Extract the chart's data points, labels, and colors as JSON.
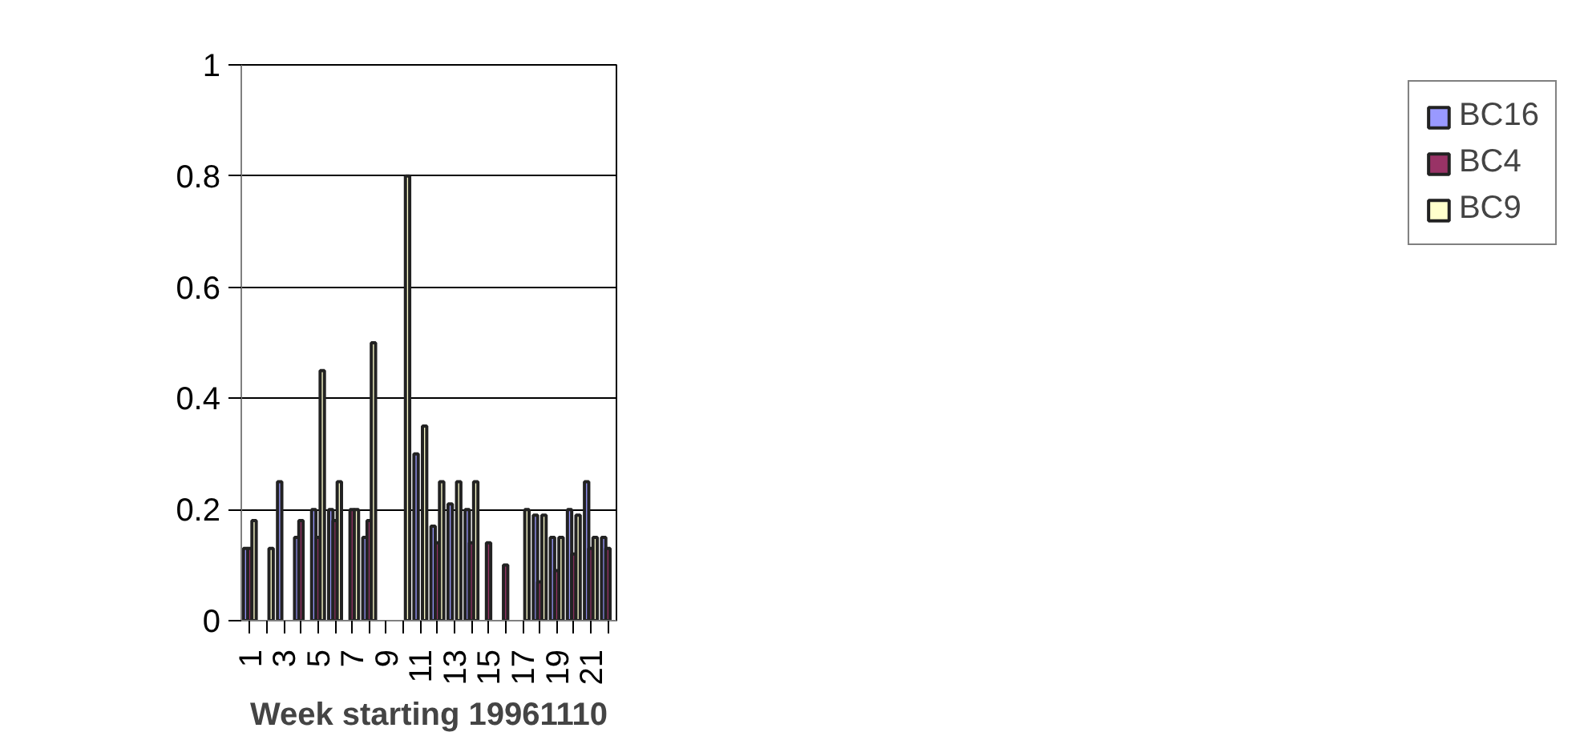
{
  "chart_data": {
    "type": "bar",
    "xlabel": "Week starting 19961110",
    "categories": [
      "1",
      null,
      "3",
      null,
      "5",
      null,
      "7",
      null,
      "9",
      null,
      "11",
      null,
      "13",
      null,
      "15",
      null,
      "17",
      null,
      "19",
      null,
      "21",
      null
    ],
    "series": [
      {
        "name": "BC16",
        "color": "#9999ff",
        "values": [
          0.13,
          null,
          0.25,
          0.15,
          0.2,
          0.2,
          null,
          0.15,
          null,
          null,
          0.3,
          0.17,
          0.21,
          0.2,
          null,
          null,
          null,
          0.19,
          0.15,
          0.2,
          0.25,
          0.15
        ]
      },
      {
        "name": "BC4",
        "color": "#993366",
        "values": [
          0.13,
          null,
          null,
          0.18,
          0.15,
          0.18,
          0.2,
          0.18,
          null,
          null,
          null,
          0.14,
          null,
          0.14,
          0.14,
          0.1,
          null,
          0.07,
          0.09,
          0.12,
          0.13,
          0.13
        ]
      },
      {
        "name": "BC9",
        "color": "#ffffcc",
        "values": [
          0.18,
          0.13,
          null,
          null,
          0.45,
          0.25,
          0.2,
          0.5,
          null,
          0.8,
          0.35,
          0.25,
          0.25,
          0.25,
          null,
          null,
          0.2,
          0.19,
          0.15,
          0.19,
          0.15,
          null
        ]
      }
    ],
    "ylim": [
      0,
      1
    ],
    "yticks": [
      0,
      0.2,
      0.4,
      0.6,
      0.8,
      1
    ],
    "grid": "y",
    "legend": "right"
  }
}
